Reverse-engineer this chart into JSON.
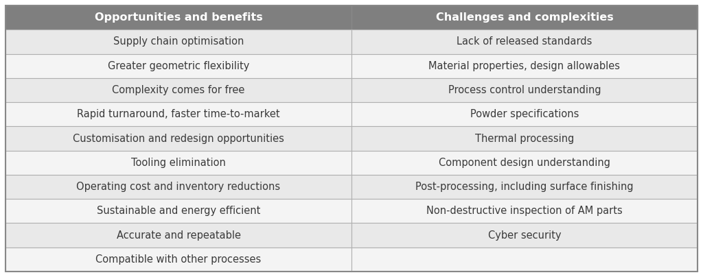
{
  "header": [
    "Opportunities and benefits",
    "Challenges and complexities"
  ],
  "rows": [
    [
      "Supply chain optimisation",
      "Lack of released standards"
    ],
    [
      "Greater geometric flexibility",
      "Material properties, design allowables"
    ],
    [
      "Complexity comes for free",
      "Process control understanding"
    ],
    [
      "Rapid turnaround, faster time-to-market",
      "Powder specifications"
    ],
    [
      "Customisation and redesign opportunities",
      "Thermal processing"
    ],
    [
      "Tooling elimination",
      "Component design understanding"
    ],
    [
      "Operating cost and inventory reductions",
      "Post-processing, including surface finishing"
    ],
    [
      "Sustainable and energy efficient",
      "Non-destructive inspection of AM parts"
    ],
    [
      "Accurate and repeatable",
      "Cyber security"
    ],
    [
      "Compatible with other processes",
      ""
    ]
  ],
  "header_bg": "#7f7f7f",
  "header_text_color": "#ffffff",
  "row_bg_even": "#e9e9e9",
  "row_bg_odd": "#f4f4f4",
  "cell_text_color": "#3a3a3a",
  "border_color": "#b0b0b0",
  "outer_border_color": "#888888",
  "fig_bg": "#ffffff",
  "header_fontsize": 11.5,
  "cell_fontsize": 10.5,
  "header_fontstyle": "bold"
}
